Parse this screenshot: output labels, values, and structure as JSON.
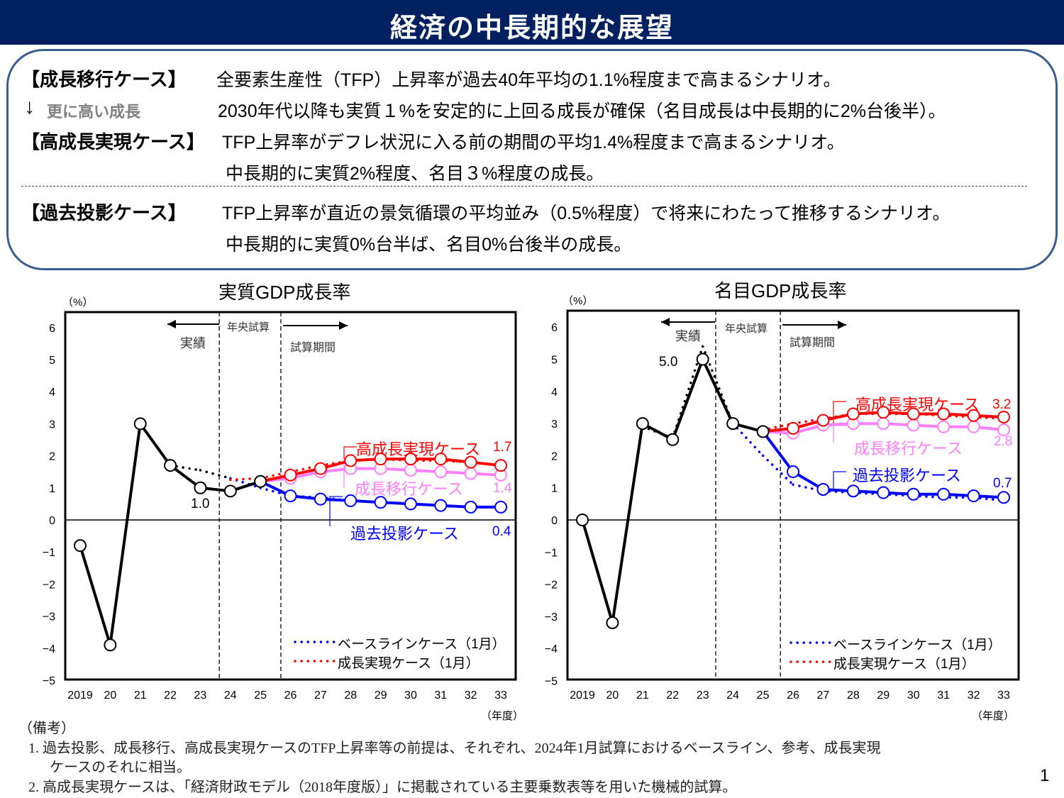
{
  "header": {
    "title": "経済の中長期的な展望"
  },
  "summary": {
    "transition_label": "【成長移行ケース】",
    "transition_text": "全要素生産性（TFP）上昇率が過去40年平均の1.1%程度まで高まるシナリオ。",
    "arrow_label": "更に高い成長",
    "arrow_text": "2030年代以降も実質１%を安定的に上回る成長が確保（名目成長は中長期的に2%台後半）。",
    "high_label": "【高成長実現ケース】",
    "high_text1": "TFP上昇率がデフレ状況に入る前の期間の平均1.4%程度まで高まるシナリオ。",
    "high_text2": "中長期的に実質2%程度、名目３%程度の成長。",
    "past_label": "【過去投影ケース】",
    "past_text1": "TFP上昇率が直近の景気循環の平均並み（0.5%程度）で将来にわたって推移するシナリオ。",
    "past_text2": "中長期的に実質0%台半ば、名目0%台後半の成長。"
  },
  "chart_data": [
    {
      "type": "line",
      "title": "実質GDP成長率",
      "ylabel": "（%）",
      "xlabel": "（年度）",
      "ylim": [
        -5,
        6.5
      ],
      "yticks": [
        6,
        5,
        4,
        3,
        2,
        1,
        0,
        -1,
        -2,
        -3,
        -4,
        -5
      ],
      "xticks": [
        "2019",
        "20",
        "21",
        "22",
        "23",
        "24",
        "25",
        "26",
        "27",
        "28",
        "29",
        "30",
        "31",
        "32",
        "33"
      ],
      "period_labels": {
        "left_arrow": "実績",
        "middle": "年央試算",
        "right_arrow": "試算期間"
      },
      "annotations": {
        "actual_2023": "1.0",
        "high_end": "1.7",
        "transition_end": "1.4",
        "past_end": "0.4"
      },
      "series": [
        {
          "name": "実績",
          "color": "#000000",
          "style": "solid-marker",
          "x": [
            2019,
            2020,
            2021,
            2022,
            2023,
            2024,
            2025
          ],
          "values": [
            -0.8,
            -3.9,
            3.0,
            1.7,
            1.0,
            0.9,
            1.2
          ]
        },
        {
          "name": "高成長実現ケース",
          "color": "#ff0000",
          "style": "solid-marker",
          "x": [
            2025,
            2026,
            2027,
            2028,
            2029,
            2030,
            2031,
            2032,
            2033
          ],
          "values": [
            1.2,
            1.4,
            1.6,
            1.85,
            1.9,
            1.9,
            1.9,
            1.8,
            1.7
          ]
        },
        {
          "name": "成長移行ケース",
          "color": "#ff80ff",
          "style": "solid-marker",
          "x": [
            2025,
            2026,
            2027,
            2028,
            2029,
            2030,
            2031,
            2032,
            2033
          ],
          "values": [
            1.2,
            1.3,
            1.5,
            1.6,
            1.6,
            1.55,
            1.5,
            1.45,
            1.4
          ]
        },
        {
          "name": "過去投影ケース",
          "color": "#0000ff",
          "style": "solid-marker",
          "x": [
            2025,
            2026,
            2027,
            2028,
            2029,
            2030,
            2031,
            2032,
            2033
          ],
          "values": [
            1.2,
            0.75,
            0.65,
            0.6,
            0.55,
            0.5,
            0.45,
            0.4,
            0.4
          ]
        },
        {
          "name": "ベースラインケース（1月）",
          "color": "#0000ff",
          "style": "dotted",
          "x": [
            2021,
            2022,
            2023,
            2024,
            2025,
            2026,
            2027,
            2028,
            2029,
            2030,
            2031,
            2032,
            2033
          ],
          "values": [
            3.0,
            1.7,
            1.55,
            1.3,
            1.0,
            0.75,
            0.7,
            0.6,
            0.55,
            0.5,
            0.45,
            0.4,
            0.4
          ]
        },
        {
          "name": "成長実現ケース（1月）",
          "color": "#ff0000",
          "style": "dotted",
          "x": [
            2024,
            2025,
            2026,
            2027,
            2028,
            2029,
            2030,
            2031,
            2032,
            2033
          ],
          "values": [
            1.25,
            1.3,
            1.5,
            1.7,
            1.85,
            1.9,
            1.85,
            1.85,
            1.8,
            1.7
          ]
        }
      ],
      "legend_position": "bottom-right",
      "grid": false
    },
    {
      "type": "line",
      "title": "名目GDP成長率",
      "ylabel": "（%）",
      "xlabel": "（年度）",
      "ylim": [
        -5,
        6.5
      ],
      "yticks": [
        6,
        5,
        4,
        3,
        2,
        1,
        0,
        -1,
        -2,
        -3,
        -4,
        -5
      ],
      "xticks": [
        "2019",
        "20",
        "21",
        "22",
        "23",
        "24",
        "25",
        "26",
        "27",
        "28",
        "29",
        "30",
        "31",
        "32",
        "33"
      ],
      "period_labels": {
        "left_arrow": "実績",
        "middle": "年央試算",
        "right_arrow": "試算期間"
      },
      "annotations": {
        "actual_2023": "5.0",
        "high_end": "3.2",
        "transition_end": "2.8",
        "past_end": "0.7"
      },
      "series": [
        {
          "name": "実績",
          "color": "#000000",
          "style": "solid-marker",
          "x": [
            2019,
            2020,
            2021,
            2022,
            2023,
            2024,
            2025
          ],
          "values": [
            0.0,
            -3.2,
            3.0,
            2.5,
            5.0,
            3.0,
            2.75
          ]
        },
        {
          "name": "高成長実現ケース",
          "color": "#ff0000",
          "style": "solid-marker",
          "x": [
            2025,
            2026,
            2027,
            2028,
            2029,
            2030,
            2031,
            2032,
            2033
          ],
          "values": [
            2.75,
            2.85,
            3.1,
            3.3,
            3.35,
            3.3,
            3.3,
            3.25,
            3.2
          ]
        },
        {
          "name": "成長移行ケース",
          "color": "#ff80ff",
          "style": "solid-marker",
          "x": [
            2025,
            2026,
            2027,
            2028,
            2029,
            2030,
            2031,
            2032,
            2033
          ],
          "values": [
            2.75,
            2.7,
            2.95,
            3.0,
            3.0,
            2.95,
            2.9,
            2.9,
            2.8
          ]
        },
        {
          "name": "過去投影ケース",
          "color": "#0000ff",
          "style": "solid-marker",
          "x": [
            2025,
            2026,
            2027,
            2028,
            2029,
            2030,
            2031,
            2032,
            2033
          ],
          "values": [
            2.75,
            1.5,
            0.95,
            0.9,
            0.85,
            0.8,
            0.8,
            0.75,
            0.7
          ]
        },
        {
          "name": "ベースラインケース（1月）",
          "color": "#0000ff",
          "style": "dotted",
          "x": [
            2021,
            2022,
            2023,
            2024,
            2025,
            2026,
            2027,
            2028,
            2029,
            2030,
            2031,
            2032,
            2033
          ],
          "values": [
            2.9,
            2.55,
            5.4,
            3.0,
            2.0,
            1.1,
            0.9,
            0.85,
            0.8,
            0.75,
            0.7,
            0.7,
            0.6
          ]
        },
        {
          "name": "成長実現ケース（1月）",
          "color": "#ff0000",
          "style": "dotted",
          "x": [
            2025,
            2026,
            2027,
            2028,
            2029,
            2030,
            2031,
            2032,
            2033
          ],
          "values": [
            2.8,
            3.0,
            3.15,
            3.3,
            3.3,
            3.3,
            3.25,
            3.2,
            3.15
          ]
        }
      ],
      "legend_position": "bottom-right",
      "grid": false
    }
  ],
  "notes": {
    "heading": "（備考）",
    "line1": "1. 過去投影、成長移行、高成長実現ケースのTFP上昇率等の前提は、それぞれ、2024年1月試算におけるベースライン、参考、成長実現",
    "line1b": "ケースのそれに相当。",
    "line2": "2. 高成長実現ケースは、「経済財政モデル（2018年度版）」に掲載されている主要乗数表等を用いた機械的試算。"
  },
  "page_number": "1"
}
